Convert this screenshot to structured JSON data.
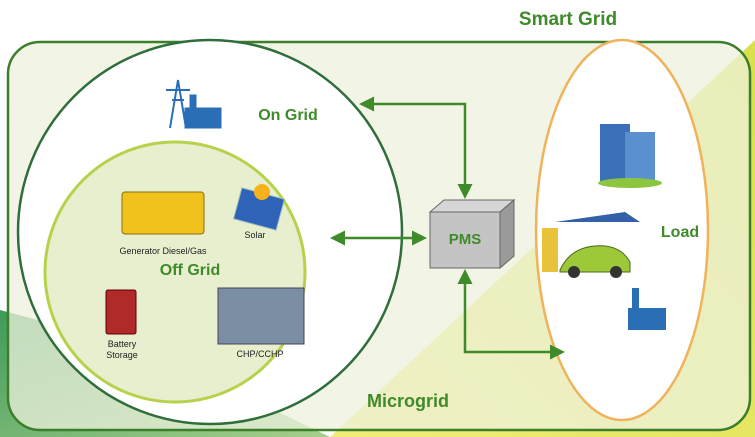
{
  "title": "Smart Grid",
  "microgrid": {
    "label": "Microgrid"
  },
  "on_grid": {
    "label": "On Grid"
  },
  "off_grid": {
    "label": "Off Grid",
    "items": [
      {
        "label": [
          "Generator Diesel/Gas"
        ]
      },
      {
        "label": [
          "Solar"
        ]
      },
      {
        "label": [
          "Battery",
          "Storage"
        ]
      },
      {
        "label": [
          "CHP/CCHP"
        ]
      }
    ]
  },
  "pms": {
    "label": "PMS"
  },
  "load": {
    "label": "Load"
  }
}
